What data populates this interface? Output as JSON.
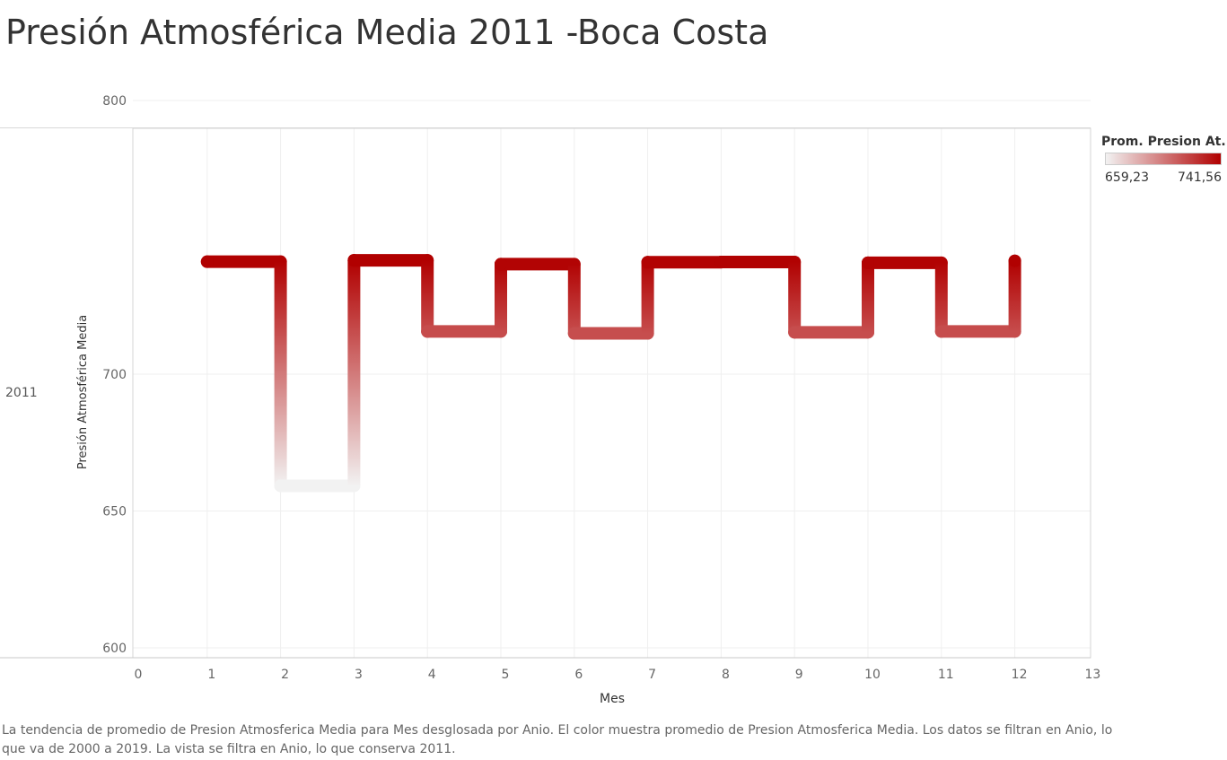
{
  "title": "Presión Atmosférica Media 2011 -Boca Costa",
  "row_label": "2011",
  "legend": {
    "title": "Prom. Presion At..",
    "min_label": "659,23",
    "max_label": "741,56",
    "min_color": "#f2f2f2",
    "max_color": "#b10000"
  },
  "caption": "La tendencia de promedio de Presion Atmosferica Media para Mes desglosada por Anio.  El color muestra promedio de Presion Atmosferica Media. Los datos se filtran en Anio, lo que va de 2000 a 2019. La vista se filtra en Anio, lo que conserva 2011.",
  "chart_data": {
    "type": "line",
    "step": true,
    "xlabel": "Mes",
    "ylabel": "Presión Atmosférica Media",
    "xlim": [
      0,
      13
    ],
    "ylim": [
      600,
      800
    ],
    "x_ticks": [
      0,
      1,
      2,
      3,
      4,
      5,
      6,
      7,
      8,
      9,
      10,
      11,
      12,
      13
    ],
    "y_ticks": [
      600,
      650,
      700,
      800
    ],
    "grid": true,
    "color_scale": [
      "#f2f2f2",
      "#b10000"
    ],
    "series": [
      {
        "x": [
          1,
          2,
          3,
          4,
          5,
          6,
          7,
          8,
          9,
          10,
          11,
          12
        ],
        "values": [
          741.1,
          659.2,
          741.6,
          715.6,
          740.2,
          714.9,
          740.9,
          741.0,
          715.3,
          740.7,
          715.6,
          741.4
        ]
      }
    ]
  }
}
